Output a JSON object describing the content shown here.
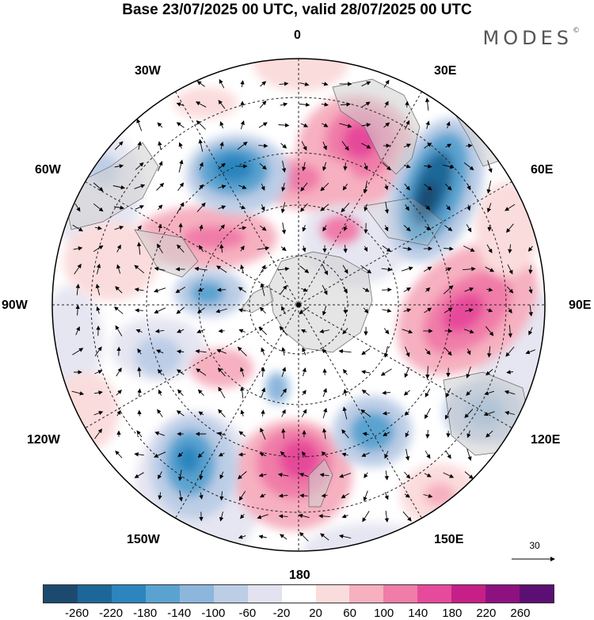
{
  "title": "Base 23/07/2025 00 UTC, valid 28/07/2025 00 UTC",
  "brand": "MODES",
  "brand_mark": "©",
  "longitude_labels": {
    "lon_0": "0",
    "lon_30e": "30E",
    "lon_60e": "60E",
    "lon_90e": "90E",
    "lon_120e": "120E",
    "lon_150e": "150E",
    "lon_180": "180",
    "lon_150w": "150W",
    "lon_120w": "120W",
    "lon_90w": "90W",
    "lon_60w": "60W",
    "lon_30w": "30W"
  },
  "vector_scale": {
    "value": "30"
  },
  "colorbar": {
    "colors": [
      "#1c4a6e",
      "#1d6798",
      "#2c85be",
      "#5aa3d0",
      "#8db6dc",
      "#bccde6",
      "#e2e2f0",
      "#ffffff",
      "#fbdcdc",
      "#f6b0c0",
      "#f07ca8",
      "#e64a9a",
      "#c61f88",
      "#8d1280",
      "#5c0f72"
    ],
    "ticks": [
      "-260",
      "-220",
      "-180",
      "-140",
      "-100",
      "-60",
      "-20",
      "20",
      "60",
      "100",
      "140",
      "180",
      "220",
      "260"
    ]
  }
}
